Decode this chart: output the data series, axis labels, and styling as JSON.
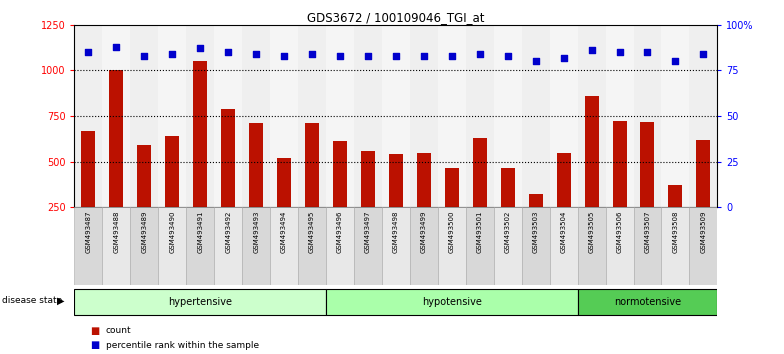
{
  "title": "GDS3672 / 100109046_TGI_at",
  "samples": [
    "GSM493487",
    "GSM493488",
    "GSM493489",
    "GSM493490",
    "GSM493491",
    "GSM493492",
    "GSM493493",
    "GSM493494",
    "GSM493495",
    "GSM493496",
    "GSM493497",
    "GSM493498",
    "GSM493499",
    "GSM493500",
    "GSM493501",
    "GSM493502",
    "GSM493503",
    "GSM493504",
    "GSM493505",
    "GSM493506",
    "GSM493507",
    "GSM493508",
    "GSM493509"
  ],
  "counts": [
    670,
    1000,
    590,
    640,
    1050,
    790,
    710,
    520,
    710,
    610,
    560,
    540,
    545,
    465,
    630,
    465,
    320,
    545,
    860,
    720,
    715,
    370,
    620
  ],
  "percentile_ranks": [
    85,
    88,
    83,
    84,
    87,
    85,
    84,
    83,
    84,
    83,
    83,
    83,
    83,
    83,
    84,
    83,
    80,
    82,
    86,
    85,
    85,
    80,
    84
  ],
  "groups": [
    {
      "label": "hypertensive",
      "start": 0,
      "end": 9,
      "color": "#ccffcc"
    },
    {
      "label": "hypotensive",
      "start": 9,
      "end": 18,
      "color": "#aaffaa"
    },
    {
      "label": "normotensive",
      "start": 18,
      "end": 23,
      "color": "#55cc55"
    }
  ],
  "bar_color": "#bb1100",
  "dot_color": "#0000cc",
  "ylim_left": [
    250,
    1250
  ],
  "yticks_left": [
    250,
    500,
    750,
    1000,
    1250
  ],
  "ylim_right": [
    0,
    100
  ],
  "yticks_right": [
    0,
    25,
    50,
    75,
    100
  ],
  "plot_bg": "#ffffff",
  "tick_bg_even": "#d8d8d8",
  "tick_bg_odd": "#e8e8e8"
}
